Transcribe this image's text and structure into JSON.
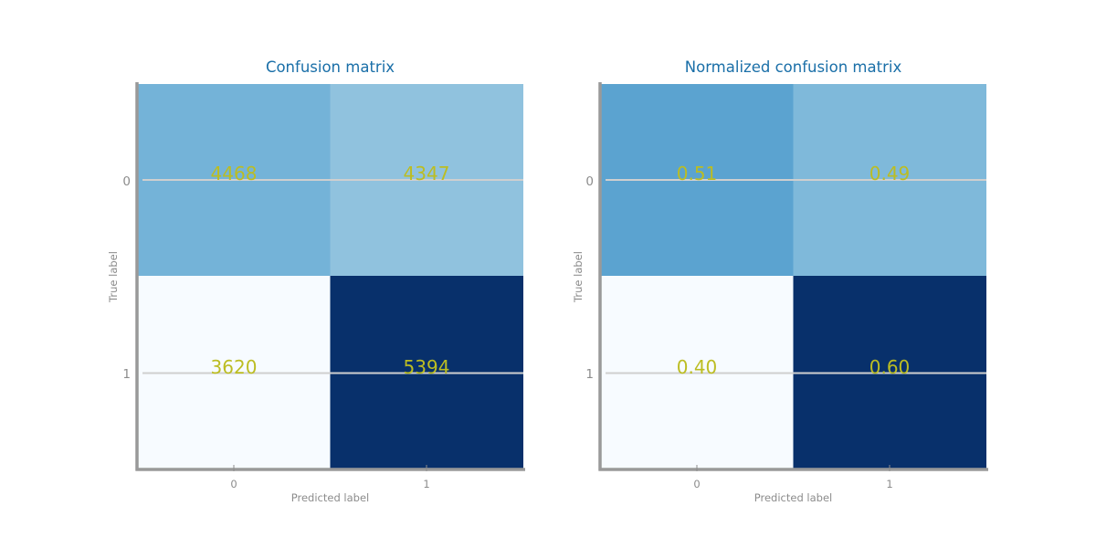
{
  "chart_data": [
    {
      "type": "heatmap",
      "title": "Confusion matrix",
      "xlabel": "Predicted label",
      "ylabel": "True label",
      "x_categories": [
        "0",
        "1"
      ],
      "y_categories": [
        "0",
        "1"
      ],
      "values": [
        [
          4468,
          4347
        ],
        [
          3620,
          5394
        ]
      ],
      "value_labels": [
        [
          "4468",
          "4347"
        ],
        [
          "3620",
          "5394"
        ]
      ],
      "colormap": "Blues",
      "grid": true,
      "legend": "none"
    },
    {
      "type": "heatmap",
      "title": "Normalized confusion matrix",
      "xlabel": "Predicted label",
      "ylabel": "True label",
      "x_categories": [
        "0",
        "1"
      ],
      "y_categories": [
        "0",
        "1"
      ],
      "values": [
        [
          0.51,
          0.49
        ],
        [
          0.4,
          0.6
        ]
      ],
      "value_labels": [
        [
          "0.51",
          "0.49"
        ],
        [
          "0.40",
          "0.60"
        ]
      ],
      "colormap": "Blues",
      "grid": true,
      "legend": "none"
    }
  ],
  "colors": {
    "title": "#1a6fa8",
    "cell_text": "#bcbd22",
    "axis_text": "#8c8c8c",
    "spine": "#999999",
    "grid": "#cfcfcf",
    "cmap_low": "#f7fbff",
    "cmap_high": "#08306b"
  }
}
